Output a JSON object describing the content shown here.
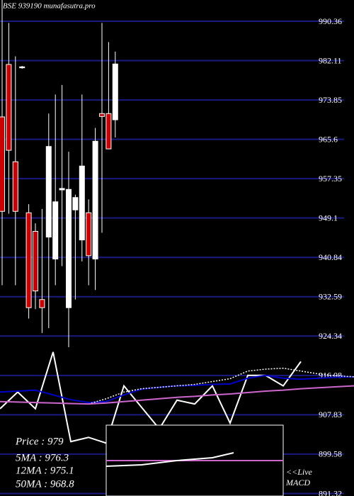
{
  "chart_data": {
    "type": "candlestick",
    "title": "BSE 939190 munafasutra.pro",
    "ylim": [
      890.8,
      994.82
    ],
    "yticks": [
      990.36,
      982.11,
      973.85,
      965.6,
      957.35,
      949.1,
      940.84,
      932.59,
      924.34,
      916.08,
      907.83,
      899.58,
      891.32
    ],
    "grid": true,
    "up_color": "#ffffff",
    "down_color": "#cc0000",
    "candles": {
      "open": [
        970.3,
        981.3,
        960.9,
        980.6,
        950.2,
        946.3,
        932.0,
        945.1,
        940.5,
        955.0,
        930.3,
        950.8,
        944.5,
        950.2,
        940.5,
        971.0,
        971.0,
        969.7
      ],
      "high": [
        996.0,
        990.0,
        983.0,
        981.0,
        952.0,
        948.0,
        951.0,
        971.0,
        975.0,
        977.0,
        963.0,
        954.0,
        975.0,
        953.0,
        968.0,
        990.0,
        986.0,
        984.0
      ],
      "low": [
        935.0,
        950.0,
        935.0,
        980.4,
        928.0,
        930.0,
        925.0,
        926.0,
        935.0,
        939.0,
        922.0,
        932.0,
        940.0,
        935.0,
        934.0,
        946.0,
        965.0,
        966.0
      ],
      "close": [
        950.5,
        963.3,
        950.5,
        980.8,
        930.3,
        933.8,
        930.3,
        964.1,
        952.5,
        955.3,
        955.1,
        953.4,
        960.0,
        941.2,
        965.2,
        970.4,
        963.6,
        981.4
      ]
    },
    "series": [
      {
        "name": "Price",
        "color": "#ffffff",
        "style": "solid",
        "values": [
          909.1,
          912.6,
          909.1,
          921.0,
          902.2,
          903.1,
          901.9,
          913.9,
          909.4,
          904.9,
          910.9,
          910.1,
          913.9,
          906.1,
          916.1,
          916.1,
          913.9,
          919.0,
          null,
          null,
          null
        ]
      },
      {
        "name": "5MA",
        "color": "#0000cc",
        "style": "solid",
        "values": [
          912.6,
          912.8,
          913.0,
          912.0,
          911.0,
          910.4,
          910.6,
          912.0,
          913.2,
          913.6,
          913.9,
          914.0,
          914.2,
          914.3,
          915.5,
          916.1,
          915.5,
          915.3,
          915.5,
          915.7,
          915.8
        ]
      },
      {
        "name": "12MA",
        "color": "#ffffff",
        "style": "dotted",
        "values": [
          null,
          null,
          null,
          null,
          null,
          910.1,
          911.2,
          912.6,
          913.3,
          913.6,
          913.9,
          914.2,
          914.8,
          915.4,
          917.0,
          917.4,
          917.6,
          917.0,
          916.4,
          916.0,
          915.8
        ]
      },
      {
        "name": "50MA",
        "color": "#cc66cc",
        "style": "solid",
        "values": [
          910.6,
          910.5,
          910.4,
          910.3,
          910.2,
          910.1,
          910.3,
          910.6,
          910.9,
          911.2,
          911.5,
          911.7,
          912.0,
          912.2,
          912.5,
          912.8,
          913.0,
          913.3,
          913.5,
          913.7,
          913.9
        ]
      }
    ],
    "legend": [
      "Price   : 979",
      "5MA : 976.3",
      "12MA : 975.1",
      "50MA : 968.8"
    ],
    "macd_label": [
      "<<Live",
      "MACD"
    ]
  }
}
